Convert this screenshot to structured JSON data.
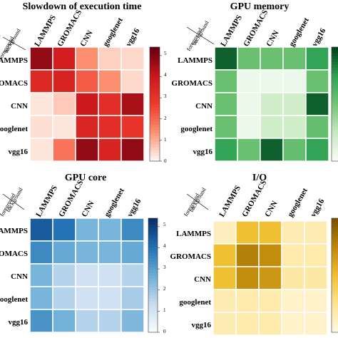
{
  "chart_data": [
    {
      "type": "heatmap",
      "title": "Slowdown of execution time",
      "corner_labels": {
        "top": "background",
        "bottom": "foreground"
      },
      "rows": [
        "LAMMPS",
        "GROMACS",
        "CNN",
        "googlenet",
        "vgg16"
      ],
      "cols": [
        "LAMMPS",
        "GROMACS",
        "CNN",
        "googlenet",
        "vgg16"
      ],
      "values": [
        [
          4.8,
          3.8,
          1.4,
          0.5,
          0.4
        ],
        [
          3.4,
          3.6,
          2.2,
          1.4,
          0.4
        ],
        [
          0.2,
          0.6,
          4.0,
          3.2,
          4.5
        ],
        [
          0.3,
          0.2,
          3.5,
          3.2,
          3.0
        ],
        [
          0.2,
          1.8,
          4.8,
          3.6,
          4.8
        ]
      ],
      "colorbar": {
        "min": 0,
        "max": 5.4,
        "ticks": [
          0,
          1,
          2,
          3,
          4,
          5
        ]
      },
      "palette": [
        "#fff5f0",
        "#fc9272",
        "#ef3b2c",
        "#cb181d",
        "#67000d"
      ]
    },
    {
      "type": "heatmap",
      "title": "GPU memory",
      "corner_labels": {
        "top": "background",
        "bottom": "foreground"
      },
      "rows": [
        "LAMMPS",
        "GROMACS",
        "CNN",
        "googlenet",
        "vgg16"
      ],
      "cols": [
        "LAMMPS",
        "GROMACS",
        "CNN",
        "googlenet",
        "vgg16"
      ],
      "values": [
        [
          5.0,
          2.9,
          2.9,
          2.9,
          4.0
        ],
        [
          2.9,
          0.3,
          0.3,
          0.3,
          2.9
        ],
        [
          2.9,
          0.3,
          1.1,
          1.1,
          5.0
        ],
        [
          2.9,
          0.3,
          1.1,
          1.1,
          3.0
        ],
        [
          4.0,
          2.9,
          5.0,
          3.0,
          4.0
        ]
      ],
      "colorbar": {
        "min": 0,
        "max": 5.4,
        "ticks": []
      },
      "palette": [
        "#f7fcf5",
        "#c7e9c0",
        "#74c476",
        "#31a354",
        "#00441b"
      ]
    },
    {
      "type": "heatmap",
      "title": "GPU core",
      "corner_labels": {
        "top": "background",
        "bottom": "foreground"
      },
      "rows": [
        "LAMMPS",
        "GROMACS",
        "CNN",
        "googlenet",
        "vgg16"
      ],
      "cols": [
        "LAMMPS",
        "GROMACS",
        "CNN",
        "googlenet",
        "vgg16"
      ],
      "values": [
        [
          4.5,
          4.0,
          2.5,
          2.5,
          3.5
        ],
        [
          3.5,
          2.8,
          2.5,
          2.5,
          2.8
        ],
        [
          2.5,
          1.6,
          1.1,
          1.1,
          1.6
        ],
        [
          2.5,
          1.6,
          1.1,
          1.1,
          1.8
        ],
        [
          3.3,
          2.6,
          1.6,
          1.6,
          2.4
        ]
      ],
      "colorbar": {
        "min": 0,
        "max": 5.4,
        "ticks": [
          0,
          1,
          2,
          3,
          4,
          5
        ]
      },
      "palette": [
        "#f7fbff",
        "#c6dbef",
        "#6baed6",
        "#2171b5",
        "#08306b"
      ]
    },
    {
      "type": "heatmap",
      "title": "I/O",
      "corner_labels": {
        "top": "background",
        "bottom": "foreground"
      },
      "rows": [
        "LAMMPS",
        "GROMACS",
        "CNN",
        "googlenet",
        "vgg16"
      ],
      "cols": [
        "LAMMPS",
        "GROMACS",
        "CNN",
        "googlenet",
        "vgg16"
      ],
      "values": [
        [
          0.6,
          2.7,
          2.7,
          0.8,
          0.8
        ],
        [
          2.7,
          4.3,
          4.0,
          0.9,
          0.9
        ],
        [
          2.7,
          4.0,
          3.7,
          1.0,
          1.0
        ],
        [
          0.8,
          0.9,
          0.9,
          0.4,
          0.4
        ],
        [
          0.8,
          0.9,
          0.9,
          0.4,
          0.4
        ]
      ],
      "colorbar": {
        "min": 0,
        "max": 5.4,
        "ticks": []
      },
      "palette": [
        "#fff7e0",
        "#fee391",
        "#f0c033",
        "#c08a0a",
        "#7a5200"
      ]
    }
  ]
}
